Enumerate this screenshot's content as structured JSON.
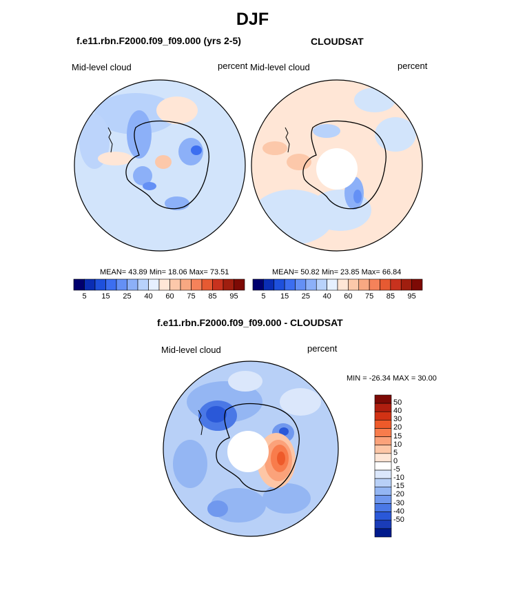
{
  "title": "DJF",
  "panels": [
    {
      "title": "f.e11.rbn.F2000.f09_f09.000 (yrs 2-5)",
      "label_left": "Mid-level cloud",
      "label_right": "percent",
      "stats": "MEAN=  43.89  Min=  18.06  Max=  73.51"
    },
    {
      "title": "CLOUDSAT",
      "label_left": "Mid-level cloud",
      "label_right": "percent",
      "stats": "MEAN=  50.82  Min=  23.85  Max=  66.84"
    },
    {
      "title": "f.e11.rbn.F2000.f09_f09.000 - CLOUDSAT",
      "label_left": "Mid-level cloud",
      "label_right": "percent",
      "stats": "MIN = -26.34 MAX =  30.00"
    }
  ],
  "colorbar_abs": {
    "colors": [
      "#00006e",
      "#0a2db4",
      "#1e50dc",
      "#3c6ef0",
      "#6490f5",
      "#8cb0f8",
      "#b8d2fb",
      "#e6f0ff",
      "#ffe6d6",
      "#fcc8aa",
      "#f8a882",
      "#f5825a",
      "#e65a32",
      "#c8321e",
      "#a01e0f",
      "#7d0a05"
    ],
    "ticks": [
      "5",
      "15",
      "25",
      "40",
      "60",
      "75",
      "85",
      "95"
    ]
  },
  "colorbar_diff": {
    "colors": [
      "#7d0a05",
      "#b01e0f",
      "#d23214",
      "#ee5a2a",
      "#f87c4c",
      "#fba27a",
      "#fdc6a6",
      "#fee6d6",
      "#ffffff",
      "#dbe7fb",
      "#b8d0f7",
      "#94b6f3",
      "#7098ee",
      "#4a78e6",
      "#2a58d8",
      "#1a3cb8",
      "#001a8c"
    ],
    "ticks": [
      "50",
      "40",
      "30",
      "20",
      "15",
      "10",
      "5",
      "0",
      "-5",
      "-10",
      "-15",
      "-20",
      "-30",
      "-40",
      "-50"
    ]
  }
}
